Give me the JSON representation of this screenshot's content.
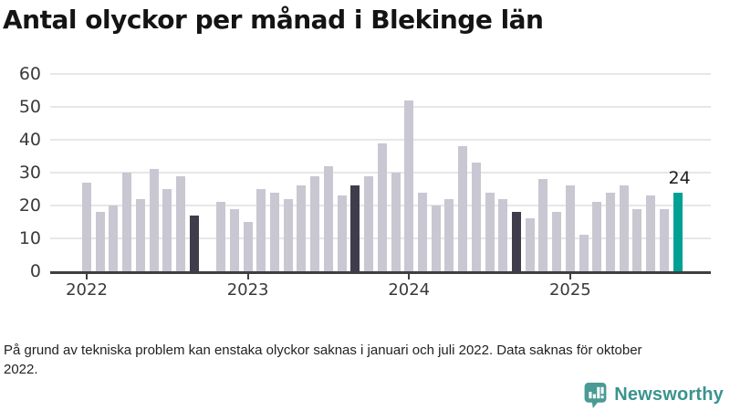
{
  "title": "Antal olyckor per månad i Blekinge län",
  "footnote": "På grund av tekniska problem kan enstaka olyckor saknas i januari och juli 2022. Data saknas för oktober 2022.",
  "logo": {
    "text": "Newsworthy"
  },
  "colors": {
    "bar_default": "#c9c7d2",
    "bar_dark": "#3f3d4b",
    "bar_highlight": "#00a095",
    "grid": "#e7e6e9",
    "axis": "#3f3f42",
    "logo_teal": "#4a9a95"
  },
  "chart_data": {
    "type": "bar",
    "title": "Antal olyckor per månad i Blekinge län",
    "xlabel": "",
    "ylabel": "",
    "ylim": [
      0,
      60
    ],
    "yticks": [
      0,
      10,
      20,
      30,
      40,
      50,
      60
    ],
    "grid": true,
    "legend": "none",
    "note": "October 2022 has no bar (data missing)",
    "xticks": [
      {
        "label": "2022",
        "month_index": 0
      },
      {
        "label": "2023",
        "month_index": 12
      },
      {
        "label": "2024",
        "month_index": 24
      },
      {
        "label": "2025",
        "month_index": 36
      }
    ],
    "bars": [
      {
        "month": "2022-01",
        "value": 27,
        "role": "default"
      },
      {
        "month": "2022-02",
        "value": 18,
        "role": "default"
      },
      {
        "month": "2022-03",
        "value": 20,
        "role": "default"
      },
      {
        "month": "2022-04",
        "value": 30,
        "role": "default"
      },
      {
        "month": "2022-05",
        "value": 22,
        "role": "default"
      },
      {
        "month": "2022-06",
        "value": 31,
        "role": "default"
      },
      {
        "month": "2022-07",
        "value": 25,
        "role": "default"
      },
      {
        "month": "2022-08",
        "value": 29,
        "role": "default"
      },
      {
        "month": "2022-09",
        "value": 17,
        "role": "dark"
      },
      {
        "month": "2022-11",
        "value": 21,
        "role": "default"
      },
      {
        "month": "2022-12",
        "value": 19,
        "role": "default"
      },
      {
        "month": "2023-01",
        "value": 15,
        "role": "default"
      },
      {
        "month": "2023-02",
        "value": 25,
        "role": "default"
      },
      {
        "month": "2023-03",
        "value": 24,
        "role": "default"
      },
      {
        "month": "2023-04",
        "value": 22,
        "role": "default"
      },
      {
        "month": "2023-05",
        "value": 26,
        "role": "default"
      },
      {
        "month": "2023-06",
        "value": 29,
        "role": "default"
      },
      {
        "month": "2023-07",
        "value": 32,
        "role": "default"
      },
      {
        "month": "2023-08",
        "value": 23,
        "role": "default"
      },
      {
        "month": "2023-09",
        "value": 26,
        "role": "dark"
      },
      {
        "month": "2023-10",
        "value": 29,
        "role": "default"
      },
      {
        "month": "2023-11",
        "value": 39,
        "role": "default"
      },
      {
        "month": "2023-12",
        "value": 30,
        "role": "default"
      },
      {
        "month": "2024-01",
        "value": 52,
        "role": "default"
      },
      {
        "month": "2024-02",
        "value": 24,
        "role": "default"
      },
      {
        "month": "2024-03",
        "value": 20,
        "role": "default"
      },
      {
        "month": "2024-04",
        "value": 22,
        "role": "default"
      },
      {
        "month": "2024-05",
        "value": 38,
        "role": "default"
      },
      {
        "month": "2024-06",
        "value": 33,
        "role": "default"
      },
      {
        "month": "2024-07",
        "value": 24,
        "role": "default"
      },
      {
        "month": "2024-08",
        "value": 22,
        "role": "default"
      },
      {
        "month": "2024-09",
        "value": 18,
        "role": "dark"
      },
      {
        "month": "2024-10",
        "value": 16,
        "role": "default"
      },
      {
        "month": "2024-11",
        "value": 28,
        "role": "default"
      },
      {
        "month": "2024-12",
        "value": 18,
        "role": "default"
      },
      {
        "month": "2025-01",
        "value": 26,
        "role": "default"
      },
      {
        "month": "2025-02",
        "value": 11,
        "role": "default"
      },
      {
        "month": "2025-03",
        "value": 21,
        "role": "default"
      },
      {
        "month": "2025-04",
        "value": 24,
        "role": "default"
      },
      {
        "month": "2025-05",
        "value": 26,
        "role": "default"
      },
      {
        "month": "2025-06",
        "value": 19,
        "role": "default"
      },
      {
        "month": "2025-07",
        "value": 23,
        "role": "default"
      },
      {
        "month": "2025-08",
        "value": 19,
        "role": "default"
      },
      {
        "month": "2025-09",
        "value": 24,
        "role": "highlight",
        "label": "24"
      }
    ]
  }
}
